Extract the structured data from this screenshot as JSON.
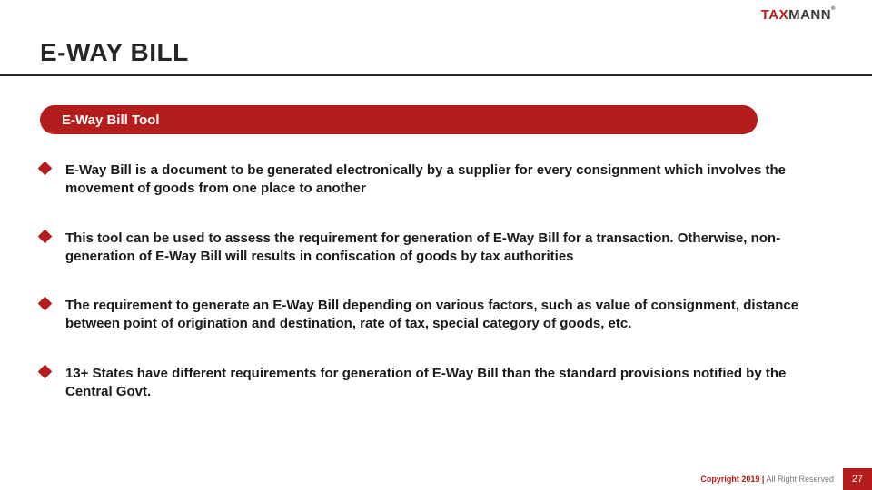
{
  "brand": {
    "part1": "TAX",
    "part2": "MANN",
    "tm": "®"
  },
  "title": "E-WAY BILL",
  "pill_label": "E-Way Bill Tool",
  "bullet_marker_color": "#b51c1c",
  "bullets": [
    "E-Way Bill is a document to be generated electronically by a supplier for every consignment which involves the movement of goods from one place to another",
    "This tool can be used to assess the requirement for generation of E-Way Bill for a transaction. Otherwise, non-generation of E-Way Bill will results in confiscation of goods by tax authorities",
    "The requirement to generate an E-Way Bill depending on various factors, such as value of consignment, distance between point of origination and destination, rate of tax, special category of goods, etc.",
    "13+ States have different requirements for generation of E-Way Bill than the standard provisions notified by the Central Govt."
  ],
  "footer": {
    "copyright_strong": "Copyright 2019 |",
    "copyright_rest": " All Right Reserved",
    "page": "27"
  },
  "colors": {
    "accent": "#b51c1c",
    "text": "#262626",
    "rule": "#262626",
    "background": "#ffffff"
  }
}
